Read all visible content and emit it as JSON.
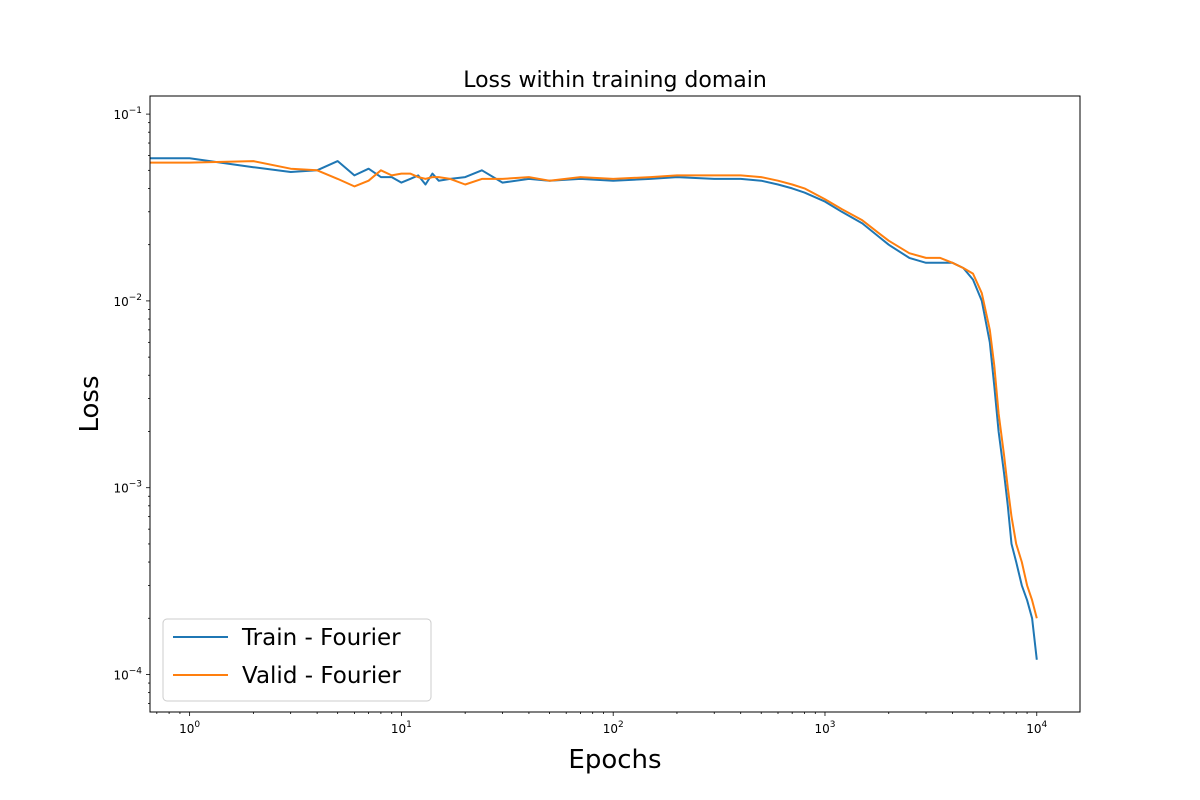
{
  "chart_data": {
    "type": "line",
    "title": "Loss within training domain",
    "xlabel": "Epochs",
    "ylabel": "Loss",
    "xscale": "log",
    "yscale": "log",
    "xlim": [
      0.65,
      16000
    ],
    "ylim": [
      6.3e-05,
      0.125
    ],
    "grid": false,
    "legend_position": "lower-left",
    "x_ticks": [
      {
        "value": 1,
        "base": "10",
        "exp": "0"
      },
      {
        "value": 10,
        "base": "10",
        "exp": "1"
      },
      {
        "value": 100,
        "base": "10",
        "exp": "2"
      },
      {
        "value": 1000,
        "base": "10",
        "exp": "3"
      },
      {
        "value": 10000,
        "base": "10",
        "exp": "4"
      }
    ],
    "y_ticks": [
      {
        "value": 0.0001,
        "base": "10",
        "exp": "−4"
      },
      {
        "value": 0.001,
        "base": "10",
        "exp": "−3"
      },
      {
        "value": 0.01,
        "base": "10",
        "exp": "−2"
      },
      {
        "value": 0.1,
        "base": "10",
        "exp": "−1"
      }
    ],
    "series": [
      {
        "name": "Train - Fourier",
        "color": "#1f77b4",
        "x": [
          0,
          1,
          2,
          3,
          4,
          5,
          6,
          7,
          8,
          9,
          10,
          11,
          12,
          13,
          14,
          15,
          17,
          20,
          24,
          30,
          40,
          50,
          70,
          100,
          150,
          200,
          300,
          400,
          500,
          600,
          700,
          800,
          1000,
          1200,
          1500,
          1800,
          2000,
          2500,
          3000,
          3500,
          4000,
          4500,
          5000,
          5500,
          6000,
          6300,
          6600,
          7000,
          7300,
          7600,
          8000,
          8500,
          9000,
          9500,
          10000
        ],
        "y": [
          0.058,
          0.058,
          0.052,
          0.049,
          0.05,
          0.056,
          0.047,
          0.051,
          0.046,
          0.046,
          0.043,
          0.045,
          0.047,
          0.042,
          0.048,
          0.044,
          0.045,
          0.046,
          0.05,
          0.043,
          0.045,
          0.044,
          0.045,
          0.044,
          0.045,
          0.046,
          0.045,
          0.045,
          0.044,
          0.042,
          0.04,
          0.038,
          0.034,
          0.03,
          0.026,
          0.022,
          0.02,
          0.017,
          0.016,
          0.016,
          0.016,
          0.015,
          0.013,
          0.01,
          0.006,
          0.0035,
          0.002,
          0.0012,
          0.0008,
          0.0005,
          0.0004,
          0.0003,
          0.00025,
          0.0002,
          0.00012
        ]
      },
      {
        "name": "Valid - Fourier",
        "color": "#ff7f0e",
        "x": [
          0,
          1,
          2,
          3,
          4,
          5,
          6,
          7,
          8,
          9,
          10,
          11,
          12,
          13,
          14,
          15,
          17,
          20,
          24,
          30,
          40,
          50,
          70,
          100,
          150,
          200,
          300,
          400,
          500,
          600,
          700,
          800,
          1000,
          1200,
          1500,
          1800,
          2000,
          2500,
          3000,
          3500,
          4000,
          4500,
          5000,
          5500,
          6000,
          6300,
          6600,
          7000,
          7300,
          7600,
          8000,
          8500,
          9000,
          9500,
          10000
        ],
        "y": [
          0.055,
          0.055,
          0.056,
          0.051,
          0.05,
          0.045,
          0.041,
          0.044,
          0.05,
          0.047,
          0.048,
          0.048,
          0.046,
          0.045,
          0.046,
          0.046,
          0.045,
          0.042,
          0.045,
          0.045,
          0.046,
          0.044,
          0.046,
          0.045,
          0.046,
          0.047,
          0.047,
          0.047,
          0.046,
          0.044,
          0.042,
          0.04,
          0.035,
          0.031,
          0.027,
          0.023,
          0.021,
          0.018,
          0.017,
          0.017,
          0.016,
          0.015,
          0.014,
          0.011,
          0.007,
          0.0045,
          0.0025,
          0.0015,
          0.001,
          0.0007,
          0.0005,
          0.0004,
          0.0003,
          0.00025,
          0.0002
        ]
      }
    ]
  }
}
